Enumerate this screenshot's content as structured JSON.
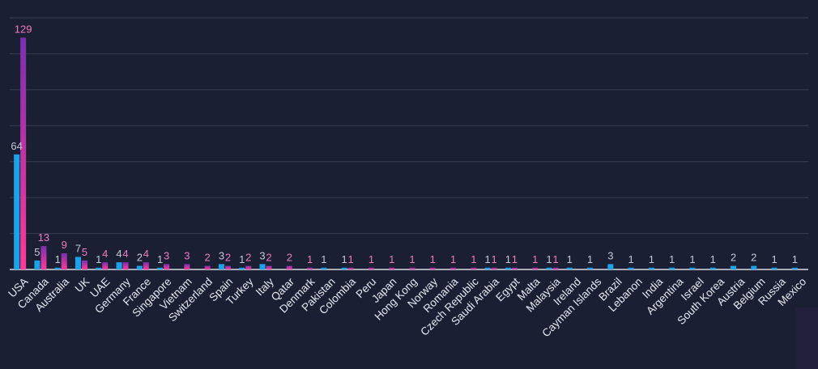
{
  "colors": {
    "background": "#1b1f33",
    "grid": "#3a3f55",
    "axis": "#d8dae4",
    "series_a": "#1aa3e8",
    "series_b_top": "#7a2fb0",
    "series_b_bottom": "#ff3a9a",
    "label_a": "#c5c9d6",
    "label_b": "#f07ac4",
    "tick_label": "#e6e8f0"
  },
  "chart_data": {
    "type": "bar",
    "categories": [
      "USA",
      "Canada",
      "Australia",
      "UK",
      "UAE",
      "Germany",
      "France",
      "Singapore",
      "Vietnam",
      "Switzerland",
      "Spain",
      "Turkey",
      "Italy",
      "Qatar",
      "Denmark",
      "Pakistan",
      "Colombia",
      "Peru",
      "Japan",
      "Hong Kong",
      "Norway",
      "Romania",
      "Czech Republic",
      "Saudi Arabia",
      "Egypt",
      "Malta",
      "Malaysia",
      "Ireland",
      "Cayman Islands",
      "Brazil",
      "Lebanon",
      "India",
      "Argentina",
      "Israel",
      "South Korea",
      "Austria",
      "Belgium",
      "Russia",
      "Mexico"
    ],
    "series": [
      {
        "values": [
          64,
          5,
          1,
          7,
          1,
          4,
          2,
          1,
          null,
          null,
          3,
          1,
          3,
          null,
          null,
          1,
          1,
          null,
          null,
          null,
          null,
          null,
          null,
          1,
          1,
          null,
          1,
          1,
          1,
          3,
          1,
          1,
          1,
          1,
          1,
          2,
          2,
          1,
          1
        ]
      },
      {
        "values": [
          129,
          13,
          9,
          5,
          4,
          4,
          4,
          3,
          3,
          2,
          2,
          2,
          2,
          2,
          1,
          null,
          1,
          1,
          1,
          1,
          1,
          1,
          1,
          1,
          1,
          1,
          1,
          null,
          null,
          null,
          null,
          null,
          null,
          null,
          null,
          null,
          null,
          null,
          null
        ]
      }
    ],
    "ylim": [
      0,
      140
    ],
    "grid": true,
    "legend": "none"
  }
}
